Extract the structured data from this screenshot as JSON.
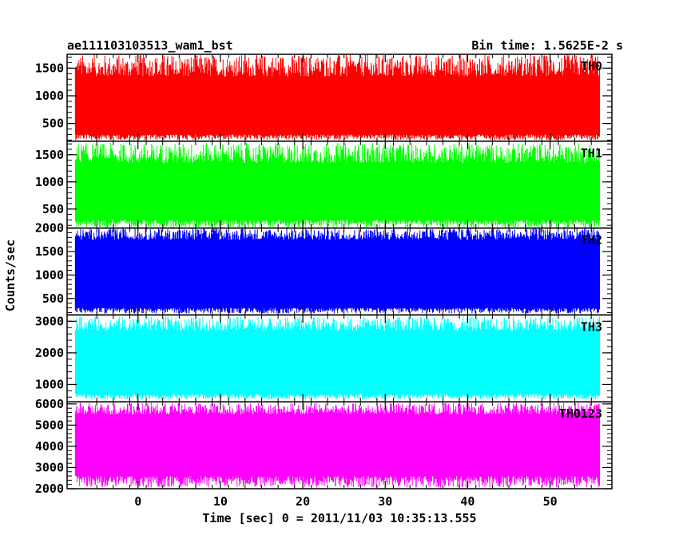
{
  "chart_data": {
    "type": "line",
    "title_left": "ae111103103513_wam1_bst",
    "title_right": "Bin time: 1.5625E-2 s",
    "xlabel": "Time [sec] 0 = 2011/11/03 10:35:13.555",
    "ylabel": "Counts/sec",
    "xlim": [
      -8.6,
      57.5
    ],
    "x_ticks": [
      0,
      10,
      20,
      30,
      40,
      50
    ],
    "x_data_range": [
      -7.6,
      56.0
    ],
    "grid": false,
    "panels": [
      {
        "name": "TH0",
        "color": "#ff0000",
        "ylim": [
          180,
          1750
        ],
        "y_ticks": [
          500,
          1000,
          1500
        ],
        "low": 300,
        "high": 1350,
        "min": 200,
        "max": 1750
      },
      {
        "name": "TH1",
        "color": "#00ff00",
        "ylim": [
          150,
          1750
        ],
        "y_ticks": [
          500,
          1000,
          1500
        ],
        "low": 300,
        "high": 1350,
        "min": 160,
        "max": 1720
      },
      {
        "name": "TH2",
        "color": "#0000ff",
        "ylim": [
          150,
          2000
        ],
        "y_ticks": [
          500,
          1000,
          1500,
          2000
        ],
        "low": 300,
        "high": 1750,
        "min": 180,
        "max": 2000
      },
      {
        "name": "TH3",
        "color": "#00ffff",
        "ylim": [
          450,
          3200
        ],
        "y_ticks": [
          1000,
          2000,
          3000
        ],
        "low": 700,
        "high": 2700,
        "min": 520,
        "max": 3150
      },
      {
        "name": "TH0123",
        "color": "#ff00ff",
        "ylim": [
          2000,
          6100
        ],
        "y_ticks": [
          2000,
          3000,
          4000,
          5000,
          6000
        ],
        "low": 2600,
        "high": 5500,
        "min": 2050,
        "max": 6050
      }
    ]
  }
}
